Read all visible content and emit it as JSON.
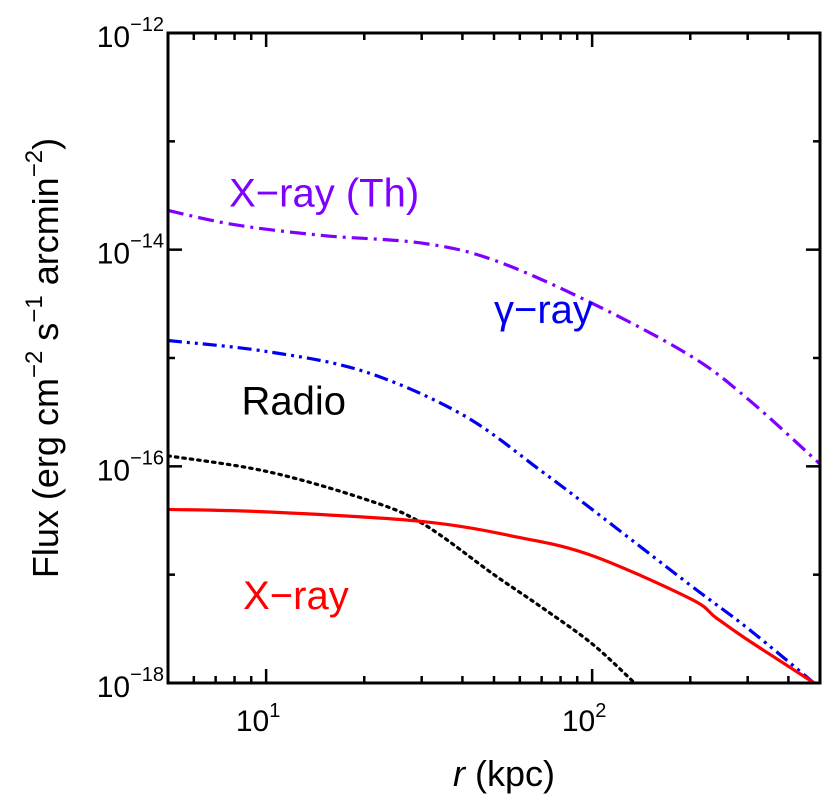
{
  "chart_data": {
    "type": "line",
    "xlabel": {
      "var": "r",
      "rest": " (kpc)"
    },
    "ylabel": {
      "p1": "Flux (erg cm",
      "e1": "−2",
      "p2": " s",
      "e2": "−1",
      "p3": " arcmin",
      "e3": "−2",
      "p4": ")"
    },
    "x_scale": "log",
    "y_scale": "log",
    "xlim": [
      5,
      500
    ],
    "ylim": [
      1e-18,
      1e-12
    ],
    "x_ticks": [
      {
        "value": 10,
        "base": "10",
        "exp": "1"
      },
      {
        "value": 100,
        "base": "10",
        "exp": "2"
      }
    ],
    "y_ticks": [
      {
        "value": 1e-18,
        "base": "10",
        "exp": "−18"
      },
      {
        "value": 1e-16,
        "base": "10",
        "exp": "−16"
      },
      {
        "value": 1e-14,
        "base": "10",
        "exp": "−14"
      },
      {
        "value": 1e-12,
        "base": "10",
        "exp": "−12"
      }
    ],
    "grid": false,
    "series": [
      {
        "name": "X−ray (Th)",
        "color": "#7f00ff",
        "style": "dash-dot",
        "label_pos": [
          7.7,
          2.5e-14
        ],
        "points": [
          [
            5,
            2.3e-14
          ],
          [
            8,
            1.7e-14
          ],
          [
            15,
            1.35e-14
          ],
          [
            30,
            1.15e-14
          ],
          [
            50,
            8e-15
          ],
          [
            100,
            3.2e-15
          ],
          [
            200,
            1.05e-15
          ],
          [
            300,
            4.2e-16
          ],
          [
            500,
            1.05e-16
          ]
        ]
      },
      {
        "name": "γ−ray",
        "color": "#0000ee",
        "style": "dash-dot-dot",
        "label_pos": [
          50,
          2.1e-15
        ],
        "points": [
          [
            5,
            1.45e-15
          ],
          [
            10,
            1.15e-15
          ],
          [
            20,
            7.5e-16
          ],
          [
            40,
            3e-16
          ],
          [
            70,
            9e-17
          ],
          [
            100,
            4e-17
          ],
          [
            200,
            8e-18
          ],
          [
            300,
            3.2e-18
          ],
          [
            500,
            9e-19
          ]
        ]
      },
      {
        "name": "Radio",
        "color": "#000000",
        "style": "dotted",
        "label_pos": [
          8.4,
          3e-16
        ],
        "points": [
          [
            5,
            1.25e-16
          ],
          [
            10,
            9e-17
          ],
          [
            20,
            5e-17
          ],
          [
            30,
            3e-17
          ],
          [
            50,
            1e-17
          ],
          [
            70,
            5e-18
          ],
          [
            100,
            2.3e-18
          ],
          [
            135,
            1e-18
          ]
        ]
      },
      {
        "name": "X−ray",
        "color": "#ff0000",
        "style": "solid",
        "label_pos": [
          8.5,
          4.8e-18
        ],
        "points": [
          [
            5,
            4e-17
          ],
          [
            10,
            3.8e-17
          ],
          [
            30,
            3.1e-17
          ],
          [
            60,
            2.2e-17
          ],
          [
            100,
            1.5e-17
          ],
          [
            200,
            6e-18
          ],
          [
            240,
            4e-18
          ],
          [
            300,
            2.5e-18
          ],
          [
            480,
            1e-18
          ]
        ]
      }
    ]
  }
}
